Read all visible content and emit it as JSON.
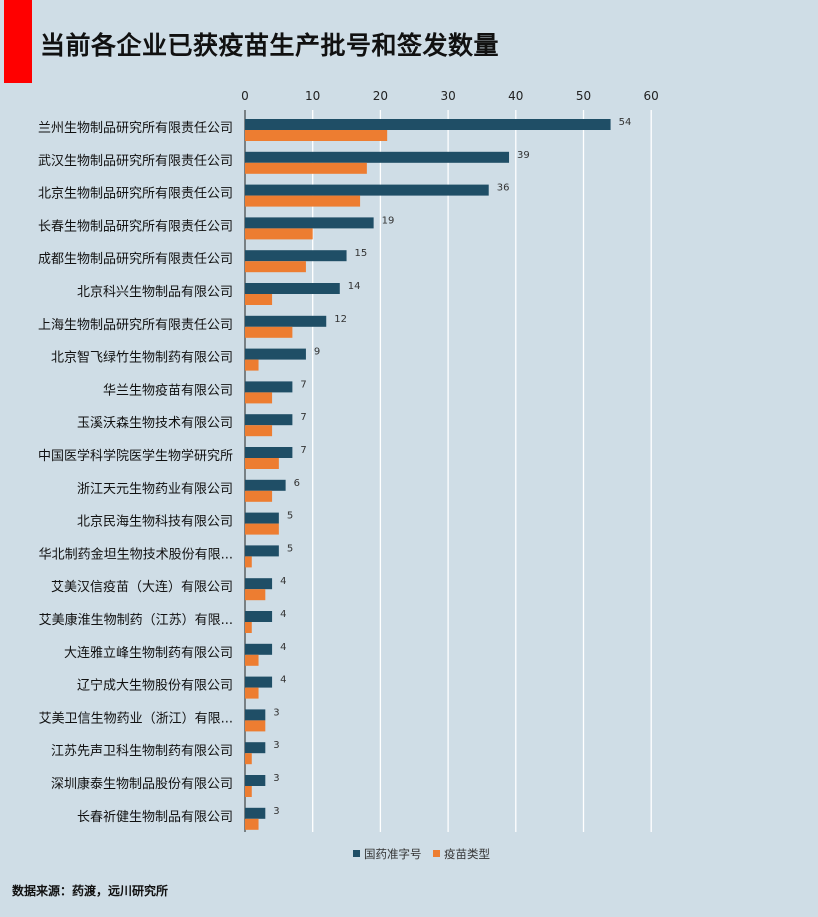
{
  "header": {
    "title": "当前各企业已获疫苗生产批号和签发数量"
  },
  "footer": {
    "source": "数据来源：药渡，远川研究所"
  },
  "colors": {
    "series1": "#1f4e66",
    "series2": "#ed7d31",
    "background": "#cfdde6",
    "accent": "#ff0000"
  },
  "chart_data": {
    "type": "bar",
    "orientation": "horizontal",
    "x_axis_position": "top",
    "xlim": [
      0,
      60
    ],
    "xticks": [
      0,
      10,
      20,
      30,
      40,
      50,
      60
    ],
    "grid": true,
    "legend_position": "bottom",
    "categories": [
      "兰州生物制品研究所有限责任公司",
      "武汉生物制品研究所有限责任公司",
      "北京生物制品研究所有限责任公司",
      "长春生物制品研究所有限责任公司",
      "成都生物制品研究所有限责任公司",
      "北京科兴生物制品有限公司",
      "上海生物制品研究所有限责任公司",
      "北京智飞绿竹生物制药有限公司",
      "华兰生物疫苗有限公司",
      "玉溪沃森生物技术有限公司",
      "中国医学科学院医学生物学研究所",
      "浙江天元生物药业有限公司",
      "北京民海生物科技有限公司",
      "华北制药金坦生物技术股份有限...",
      "艾美汉信疫苗（大连）有限公司",
      "艾美康淮生物制药（江苏）有限...",
      "大连雅立峰生物制药有限公司",
      "辽宁成大生物股份有限公司",
      "艾美卫信生物药业（浙江）有限...",
      "江苏先声卫科生物制药有限公司",
      "深圳康泰生物制品股份有限公司",
      "长春祈健生物制品有限公司"
    ],
    "series": [
      {
        "name": "国药准字号",
        "values": [
          54,
          39,
          36,
          19,
          15,
          14,
          12,
          9,
          7,
          7,
          7,
          6,
          5,
          5,
          4,
          4,
          4,
          4,
          3,
          3,
          3,
          3
        ],
        "data_labels": true
      },
      {
        "name": "疫苗类型",
        "values": [
          21,
          18,
          17,
          10,
          9,
          4,
          7,
          2,
          4,
          4,
          5,
          4,
          5,
          1,
          3,
          1,
          2,
          2,
          3,
          1,
          1,
          2
        ],
        "data_labels": false
      }
    ]
  }
}
